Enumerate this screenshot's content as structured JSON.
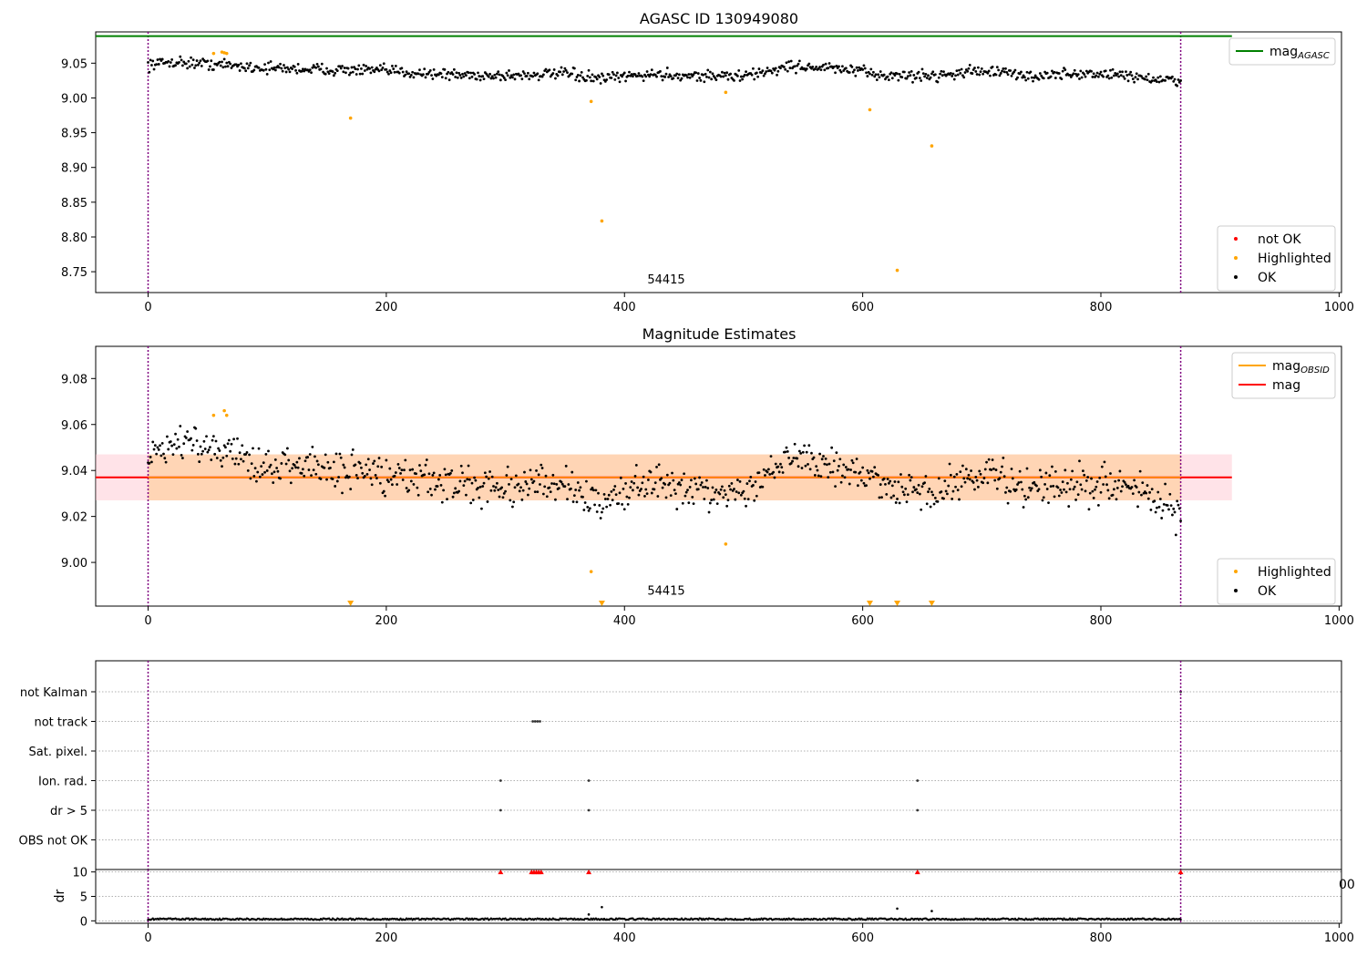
{
  "chart_data": [
    {
      "type": "scatter",
      "title": "AGASC ID 130949080",
      "xlim": [
        -44,
        1002
      ],
      "ylim": [
        8.72,
        9.095
      ],
      "xticks": [
        0,
        200,
        400,
        600,
        800,
        1000
      ],
      "yticks": [
        8.75,
        8.8,
        8.85,
        8.9,
        8.95,
        9.0,
        9.05
      ],
      "ytick_labels": [
        "8.75",
        "8.80",
        "8.85",
        "8.90",
        "8.95",
        "9.00",
        "9.05"
      ],
      "annotation": {
        "text": "54415",
        "x": 435,
        "y": 8.733
      },
      "vlines": [
        0,
        867
      ],
      "reference_line": {
        "name": "mag",
        "sub": "AGASC",
        "y": 9.089,
        "x_end": 910,
        "color": "#008000"
      },
      "legend_top": {
        "position": "upper-right",
        "entries": [
          {
            "label": "mag",
            "sub": "AGASC",
            "color": "#008000",
            "kind": "line"
          }
        ]
      },
      "legend_bottom": {
        "position": "lower-right",
        "entries": [
          {
            "label": "not OK",
            "color": "#ff0000",
            "kind": "dot"
          },
          {
            "label": "Highlighted",
            "color": "#ffa500",
            "kind": "dot"
          },
          {
            "label": "OK",
            "color": "#000000",
            "kind": "dot"
          }
        ]
      },
      "series": [
        {
          "name": "OK",
          "color": "#000000",
          "trend": {
            "x": [
              0,
              20,
              60,
              100,
              150,
              200,
              260,
              300,
              350,
              380,
              420,
              460,
              500,
              540,
              580,
              620,
              660,
              700,
              740,
              780,
              820,
              867
            ],
            "y": [
              9.048,
              9.052,
              9.048,
              9.043,
              9.041,
              9.039,
              9.033,
              9.032,
              9.035,
              9.027,
              9.034,
              9.032,
              9.031,
              9.046,
              9.042,
              9.032,
              9.032,
              9.04,
              9.031,
              9.035,
              9.033,
              9.022
            ]
          },
          "spread": 0.008
        },
        {
          "name": "Highlighted",
          "color": "#ffa500",
          "x": [
            55,
            62,
            64,
            66,
            170,
            372,
            381,
            485,
            606,
            629,
            658
          ],
          "y": [
            9.064,
            9.066,
            9.065,
            9.064,
            8.971,
            8.995,
            8.823,
            9.008,
            8.983,
            8.752,
            8.931
          ]
        }
      ]
    },
    {
      "type": "scatter",
      "title": "Magnitude Estimates",
      "xlim": [
        -44,
        1002
      ],
      "ylim": [
        8.981,
        9.094
      ],
      "xticks": [
        0,
        200,
        400,
        600,
        800,
        1000
      ],
      "yticks": [
        9.0,
        9.02,
        9.04,
        9.06,
        9.08
      ],
      "ytick_labels": [
        "9.00",
        "9.02",
        "9.04",
        "9.06",
        "9.08"
      ],
      "annotation": {
        "text": "54415",
        "x": 435,
        "y": 8.986
      },
      "vlines": [
        0,
        867
      ],
      "mag_line": {
        "name": "mag",
        "y": 9.037,
        "color": "#ff0000"
      },
      "mag_band": {
        "y_low": 9.027,
        "y_high": 9.047,
        "x_end": 910
      },
      "legend_top": {
        "position": "upper-right",
        "entries": [
          {
            "label": "mag",
            "sub": "OBSID",
            "color": "#ffa500",
            "kind": "line"
          },
          {
            "label": "mag",
            "color": "#ff0000",
            "kind": "line"
          }
        ]
      },
      "legend_bottom": {
        "position": "lower-right",
        "entries": [
          {
            "label": "Highlighted",
            "color": "#ffa500",
            "kind": "dot"
          },
          {
            "label": "OK",
            "color": "#000000",
            "kind": "dot"
          }
        ]
      },
      "series": [
        {
          "name": "OK",
          "color": "#000000",
          "trend": {
            "x": [
              0,
              20,
              60,
              100,
              150,
              200,
              260,
              300,
              350,
              380,
              420,
              460,
              500,
              540,
              580,
              620,
              660,
              700,
              740,
              780,
              820,
              867
            ],
            "y": [
              9.048,
              9.052,
              9.048,
              9.043,
              9.041,
              9.039,
              9.033,
              9.032,
              9.035,
              9.027,
              9.034,
              9.032,
              9.031,
              9.046,
              9.042,
              9.032,
              9.032,
              9.04,
              9.031,
              9.035,
              9.033,
              9.022
            ]
          },
          "spread": 0.008
        },
        {
          "name": "Highlighted",
          "color": "#ffa500",
          "x": [
            55,
            64,
            66,
            372,
            485
          ],
          "y": [
            9.064,
            9.066,
            9.064,
            8.996,
            9.008
          ]
        },
        {
          "name": "Highlighted (below axis)",
          "color": "#ffa500",
          "marker": "triangle-down",
          "x": [
            170,
            381,
            606,
            629,
            658
          ]
        }
      ]
    },
    {
      "type": "scatter",
      "title": "",
      "xlim": [
        -44,
        1002
      ],
      "category_labels": [
        "not Kalman",
        "not track",
        "Sat. pixel.",
        "Ion. rad.",
        "dr > 5",
        "OBS not OK"
      ],
      "flags": {
        "not Kalman": [
          867
        ],
        "not track": [
          323,
          325,
          327,
          329
        ],
        "Sat. pixel.": [],
        "Ion. rad.": [
          296,
          370,
          646
        ],
        "dr > 5": [
          296,
          370,
          646
        ],
        "OBS not OK": []
      },
      "vlines": [
        0,
        867
      ]
    },
    {
      "type": "scatter",
      "title": "",
      "ylabel": "dr",
      "xlim": [
        -44,
        1002
      ],
      "ylim": [
        -0.5,
        10.5
      ],
      "xticks": [
        0,
        200,
        400,
        600,
        800,
        1000
      ],
      "yticks": [
        0,
        5,
        10
      ],
      "clipped_edge_text": "00",
      "vlines": [
        0,
        867
      ],
      "series": [
        {
          "name": "dr",
          "color": "#000000",
          "base": 0.35,
          "spread": 0.3
        },
        {
          "name": "dr outliers",
          "color": "#000000",
          "x": [
            370,
            381,
            629,
            658
          ],
          "y": [
            1.3,
            2.8,
            2.5,
            2.0
          ]
        },
        {
          "name": "dr clipped",
          "color": "#ff0000",
          "marker": "triangle-up",
          "x": [
            296,
            322,
            324,
            326,
            328,
            330,
            370,
            646,
            867
          ],
          "y": [
            10,
            10,
            10,
            10,
            10,
            10,
            10,
            10,
            10
          ]
        }
      ]
    }
  ]
}
